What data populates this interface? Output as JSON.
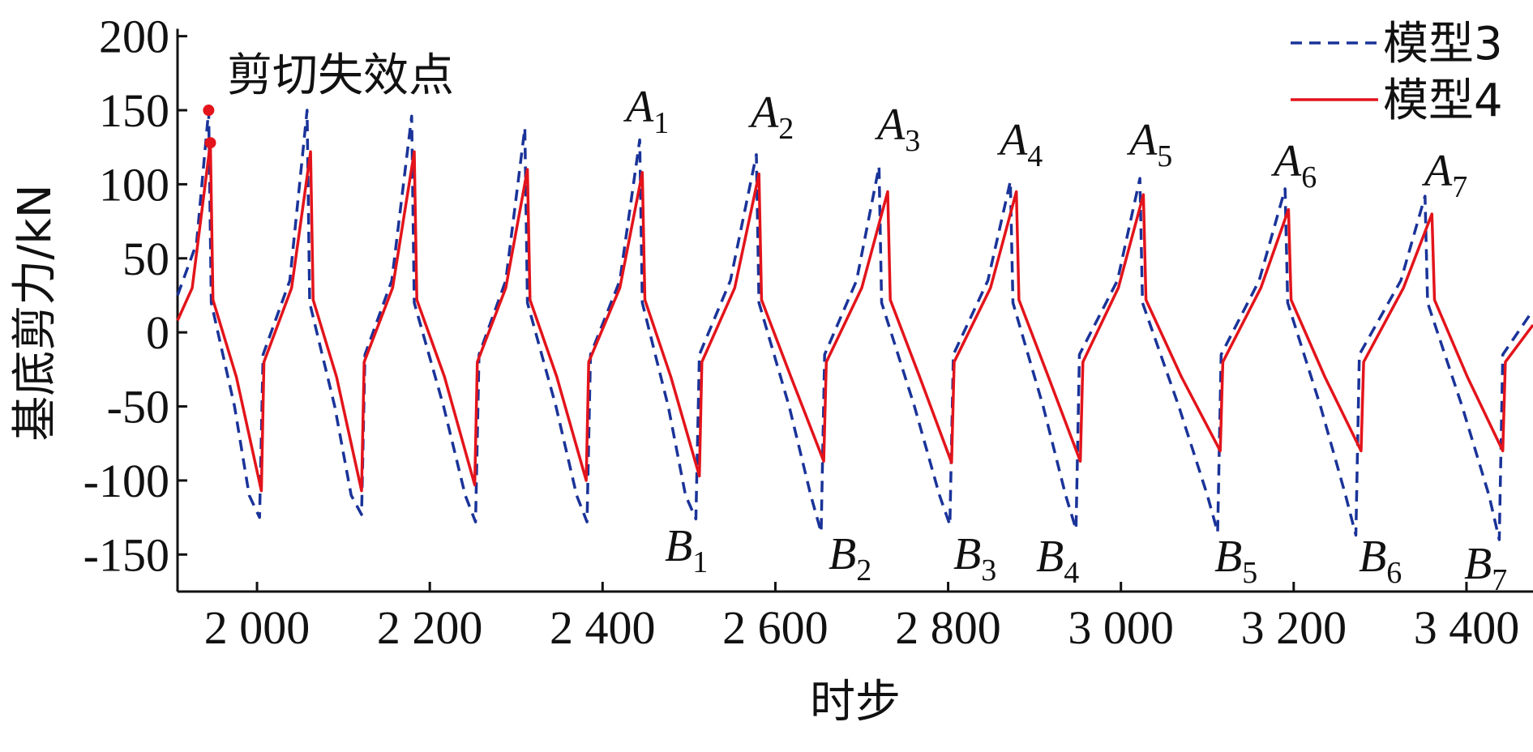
{
  "chart_data": {
    "type": "line",
    "ylabel": "基底剪力/kN",
    "xlabel": "时步",
    "annotation": "剪切失效点",
    "xlim": [
      1908,
      3477
    ],
    "ylim": [
      -175,
      205
    ],
    "xticks": [
      {
        "value": 2000,
        "label": "2 000"
      },
      {
        "value": 2200,
        "label": "2 200"
      },
      {
        "value": 2400,
        "label": "2 400"
      },
      {
        "value": 2600,
        "label": "2 600"
      },
      {
        "value": 2800,
        "label": "2 800"
      },
      {
        "value": 3000,
        "label": "3 000"
      },
      {
        "value": 3200,
        "label": "3 200"
      },
      {
        "value": 3400,
        "label": "3 400"
      }
    ],
    "yticks": [
      -150,
      -100,
      -50,
      0,
      50,
      100,
      150,
      200
    ],
    "legend": "top-right",
    "series": [
      {
        "name": "模型3",
        "color": "#1a3399",
        "dash": true,
        "x": [
          1908,
          1930,
          1944,
          1947,
          1974,
          1991,
          2003,
          2007,
          2038,
          2058,
          2061,
          2090,
          2109,
          2121,
          2125,
          2156,
          2179,
          2182,
          2216,
          2241,
          2253,
          2257,
          2288,
          2310,
          2313,
          2346,
          2370,
          2382,
          2386,
          2420,
          2443,
          2446,
          2476,
          2496,
          2508,
          2512,
          2548,
          2578,
          2581,
          2616,
          2641,
          2653,
          2657,
          2694,
          2720,
          2723,
          2761,
          2790,
          2802,
          2806,
          2846,
          2872,
          2875,
          2910,
          2936,
          2948,
          2952,
          2996,
          3022,
          3025,
          3067,
          3100,
          3112,
          3116,
          3160,
          3190,
          3193,
          3231,
          3260,
          3272,
          3276,
          3324,
          3352,
          3355,
          3395,
          3426,
          3438,
          3442,
          3477
        ],
        "values": [
          25,
          60,
          150,
          20,
          -50,
          -110,
          -125,
          -15,
          35,
          150,
          20,
          -50,
          -110,
          -123,
          -15,
          35,
          146,
          20,
          -50,
          -110,
          -128,
          -15,
          35,
          138,
          20,
          -50,
          -110,
          -128,
          -15,
          35,
          130,
          20,
          -50,
          -110,
          -126,
          -15,
          35,
          120,
          20,
          -50,
          -110,
          -135,
          -15,
          35,
          112,
          20,
          -50,
          -110,
          -130,
          -15,
          35,
          102,
          20,
          -50,
          -110,
          -133,
          -15,
          35,
          104,
          20,
          -50,
          -110,
          -135,
          -15,
          35,
          97,
          20,
          -50,
          -110,
          -137,
          -15,
          35,
          92,
          20,
          -50,
          -110,
          -140,
          -15,
          15
        ]
      },
      {
        "name": "模型4",
        "color": "#e3141b",
        "dash": false,
        "x": [
          1908,
          1925,
          1946,
          1949,
          1976,
          2005,
          2008,
          2040,
          2062,
          2065,
          2092,
          2121,
          2124,
          2157,
          2182,
          2185,
          2217,
          2252,
          2255,
          2288,
          2313,
          2316,
          2347,
          2381,
          2384,
          2420,
          2446,
          2449,
          2479,
          2512,
          2515,
          2553,
          2581,
          2584,
          2618,
          2656,
          2659,
          2700,
          2730,
          2733,
          2767,
          2804,
          2807,
          2849,
          2879,
          2882,
          2916,
          2953,
          2956,
          2997,
          3026,
          3029,
          3070,
          3115,
          3118,
          3162,
          3194,
          3197,
          3236,
          3278,
          3281,
          3327,
          3360,
          3363,
          3401,
          3442,
          3445,
          3477
        ],
        "values": [
          8,
          30,
          128,
          22,
          -30,
          -107,
          -20,
          30,
          122,
          22,
          -30,
          -107,
          -20,
          30,
          122,
          22,
          -30,
          -103,
          -20,
          30,
          110,
          22,
          -30,
          -100,
          -20,
          30,
          108,
          22,
          -30,
          -97,
          -20,
          30,
          107,
          22,
          -30,
          -87,
          -20,
          30,
          95,
          22,
          -30,
          -88,
          -20,
          30,
          95,
          22,
          -30,
          -87,
          -20,
          30,
          93,
          22,
          -30,
          -80,
          -20,
          30,
          83,
          22,
          -30,
          -80,
          -20,
          30,
          80,
          22,
          -30,
          -80,
          -20,
          5
        ]
      }
    ],
    "markers": {
      "color": "#e3141b",
      "x": [
        1944,
        1946
      ],
      "values": [
        150,
        128
      ]
    },
    "peak_labels": [
      {
        "letter": "A",
        "index": "1"
      },
      {
        "letter": "A",
        "index": "2"
      },
      {
        "letter": "A",
        "index": "3"
      },
      {
        "letter": "A",
        "index": "4"
      },
      {
        "letter": "A",
        "index": "5"
      },
      {
        "letter": "A",
        "index": "6"
      },
      {
        "letter": "A",
        "index": "7"
      }
    ],
    "trough_labels": [
      {
        "letter": "B",
        "index": "1"
      },
      {
        "letter": "B",
        "index": "2"
      },
      {
        "letter": "B",
        "index": "3"
      },
      {
        "letter": "B",
        "index": "4"
      },
      {
        "letter": "B",
        "index": "5"
      },
      {
        "letter": "B",
        "index": "6"
      },
      {
        "letter": "B",
        "index": "7"
      }
    ]
  }
}
